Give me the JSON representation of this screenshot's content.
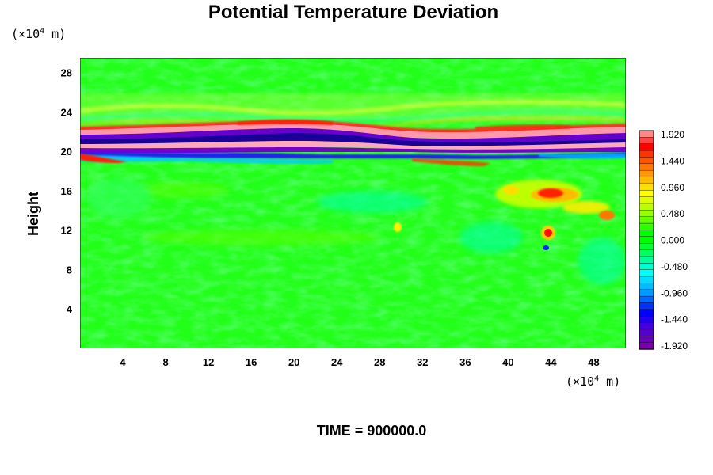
{
  "chart_data": {
    "type": "heatmap",
    "title": "Potential Temperature Deviation",
    "ylabel": "Height",
    "y_unit_prefix": "(×10",
    "unit_exp": "4",
    "unit_suffix": " m)",
    "x_unit_prefix": "(×10",
    "x_ticks": [
      "4",
      "8",
      "12",
      "16",
      "20",
      "24",
      "28",
      "32",
      "36",
      "40",
      "44",
      "48"
    ],
    "y_ticks": [
      "28",
      "24",
      "20",
      "16",
      "12",
      "8",
      "4"
    ],
    "x_tick_values": [
      4,
      8,
      12,
      16,
      20,
      24,
      28,
      32,
      36,
      40,
      44,
      48
    ],
    "y_tick_values": [
      28,
      24,
      20,
      16,
      12,
      8,
      4
    ],
    "xlim": [
      0,
      51
    ],
    "ylim": [
      0,
      29.5
    ],
    "colorbar": {
      "labels": [
        "1.920",
        "1.440",
        "0.960",
        "0.480",
        "0.000",
        "-0.480",
        "-0.960",
        "-1.440",
        "-1.920"
      ],
      "range": [
        -1.92,
        1.92
      ],
      "levels": 33
    },
    "time_label": "TIME = 900000.0",
    "features": [
      {
        "x": 0,
        "y": 20.5,
        "desc": "strong layered band between heights ~19 and ~23"
      },
      {
        "x": 44,
        "y": 15.5,
        "desc": "positive deviation cluster"
      },
      {
        "x": 44,
        "y": 12,
        "desc": "small positive spot"
      },
      {
        "x": 30,
        "y": 12.5,
        "desc": "small positive spot"
      }
    ]
  }
}
